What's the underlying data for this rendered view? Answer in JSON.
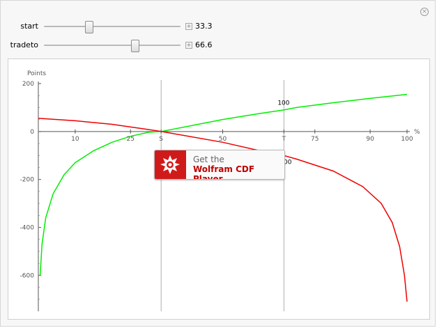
{
  "controls": [
    {
      "label": "start",
      "value": "33.3",
      "fraction": 0.333
    },
    {
      "label": "tradeto",
      "value": "66.6",
      "fraction": 0.666
    }
  ],
  "icons": {
    "close": "close-circle-icon",
    "plus": "plus-square-icon",
    "logo": "wolfram-spikey-icon"
  },
  "chart_data": {
    "type": "line",
    "ylabel": "Points",
    "xlabel": "%",
    "xlim": [
      0,
      100
    ],
    "ylim": [
      -750,
      200
    ],
    "x_ticks": [
      "10",
      "25",
      "S",
      "50",
      "T",
      "75",
      "90",
      "100"
    ],
    "y_ticks": [
      "200",
      "0",
      "-200",
      "-400",
      "-600"
    ],
    "vlines": [
      "S",
      "T"
    ],
    "series": [
      {
        "color": "#00ee00",
        "points": [
          [
            0.5,
            -600
          ],
          [
            1,
            -470
          ],
          [
            2,
            -360
          ],
          [
            4,
            -260
          ],
          [
            7,
            -180
          ],
          [
            10,
            -130
          ],
          [
            15,
            -80
          ],
          [
            20,
            -45
          ],
          [
            25,
            -20
          ],
          [
            30,
            -3
          ],
          [
            33.3,
            0
          ],
          [
            40,
            20
          ],
          [
            50,
            50
          ],
          [
            60,
            75
          ],
          [
            66.6,
            90
          ],
          [
            70,
            100
          ],
          [
            80,
            120
          ],
          [
            90,
            138
          ],
          [
            100,
            155
          ]
        ]
      },
      {
        "color": "#ee0000",
        "points": [
          [
            0,
            55
          ],
          [
            10,
            45
          ],
          [
            20,
            30
          ],
          [
            30,
            8
          ],
          [
            33.3,
            0
          ],
          [
            40,
            -18
          ],
          [
            50,
            -45
          ],
          [
            60,
            -80
          ],
          [
            66.6,
            -100
          ],
          [
            70,
            -115
          ],
          [
            80,
            -165
          ],
          [
            88,
            -230
          ],
          [
            93,
            -300
          ],
          [
            96,
            -380
          ],
          [
            98,
            -480
          ],
          [
            99.3,
            -600
          ],
          [
            100,
            -710
          ]
        ]
      }
    ],
    "annotations": [
      "100",
      "100"
    ]
  },
  "cdf_badge": {
    "line1": "Get the",
    "line2": "Wolfram CDF Player"
  }
}
